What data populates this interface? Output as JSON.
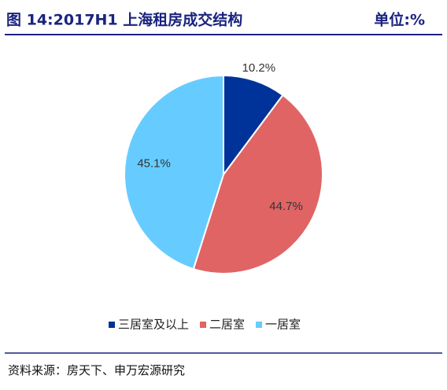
{
  "chart_data": {
    "type": "pie",
    "title": "图 14:2017H1 上海租房成交结构",
    "unit": "单位:%",
    "categories": [
      "三居室及以上",
      "二居室",
      "一居室"
    ],
    "values": [
      10.2,
      44.7,
      45.1
    ],
    "value_labels": [
      "10.2%",
      "44.7%",
      "45.1%"
    ],
    "colors": [
      "#003399",
      "#e06464",
      "#66ccff"
    ],
    "legend": "bottom",
    "source": "资料来源：房天下、申万宏源研究"
  }
}
